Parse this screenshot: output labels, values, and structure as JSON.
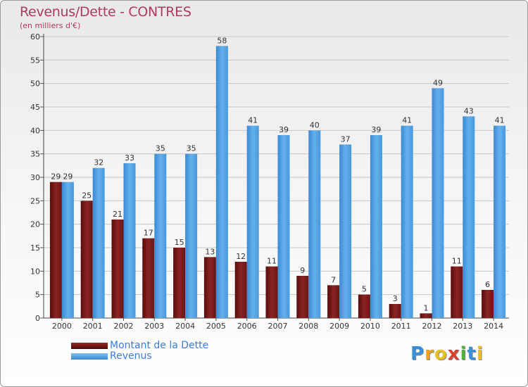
{
  "title": "Revenus/Dette - CONTRES",
  "subtitle": "(en milliers d'€)",
  "logo_text": "Proxiti",
  "colors": {
    "debt": "#7a1a1a",
    "revenue": "#4a9fe0",
    "title": "#b03a5b",
    "legend_text": "#3b7ddd"
  },
  "legend": [
    {
      "label": "Montant de la Dette",
      "color": "#6a1010"
    },
    {
      "label": "Revenus",
      "color": "#4a9fe0"
    }
  ],
  "chart_data": {
    "type": "bar",
    "title": "Revenus/Dette - CONTRES",
    "subtitle": "(en milliers d'€)",
    "categories": [
      "2000",
      "2001",
      "2002",
      "2003",
      "2004",
      "2005",
      "2006",
      "2007",
      "2008",
      "2009",
      "2010",
      "2011",
      "2012",
      "2013",
      "2014"
    ],
    "series": [
      {
        "name": "Montant de la Dette",
        "values": [
          29,
          25,
          21,
          17,
          15,
          13,
          12,
          11,
          9,
          7,
          5,
          3,
          1,
          11,
          6
        ]
      },
      {
        "name": "Revenus",
        "values": [
          29,
          32,
          33,
          35,
          35,
          58,
          41,
          39,
          40,
          37,
          39,
          41,
          49,
          43,
          41
        ]
      }
    ],
    "ylim": [
      0,
      60
    ],
    "yticks": [
      0,
      5,
      10,
      15,
      20,
      25,
      30,
      35,
      40,
      45,
      50,
      55,
      60
    ],
    "grid": true,
    "legend_position": "bottom-left"
  }
}
